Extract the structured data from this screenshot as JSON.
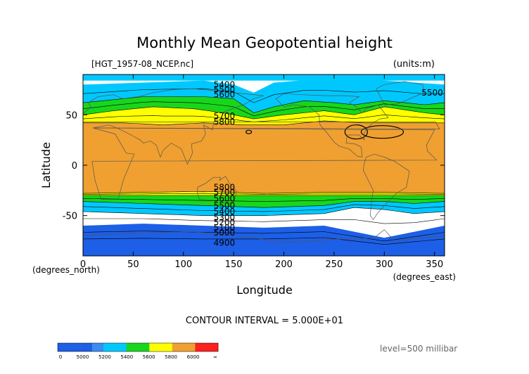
{
  "chart_data": {
    "type": "contour",
    "title": "Monthly Mean Geopotential height",
    "source_file": "[HGT_1957-08_NCEP.nc]",
    "units": "(units:m)",
    "xlabel": "Longitude",
    "ylabel": "Latitude",
    "x_unit_label": "(degrees_east)",
    "y_unit_label": "(degrees_north)",
    "xlim": [
      0,
      360
    ],
    "ylim": [
      -90,
      90
    ],
    "x_ticks": [
      0,
      50,
      100,
      150,
      200,
      250,
      300,
      350
    ],
    "y_ticks": [
      -50,
      0,
      50
    ],
    "contour_interval_text": "CONTOUR INTERVAL = 5.000E+01",
    "level_text": "level=500 millibar",
    "contour_labels": [
      {
        "text": "5400",
        "lon": 130,
        "lat": 80
      },
      {
        "text": "5500",
        "lon": 130,
        "lat": 75
      },
      {
        "text": "5600",
        "lon": 130,
        "lat": 70
      },
      {
        "text": "5500",
        "lon": 337,
        "lat": 72
      },
      {
        "text": "5700",
        "lon": 130,
        "lat": 49
      },
      {
        "text": "5800",
        "lon": 130,
        "lat": 43
      },
      {
        "text": "5800",
        "lon": 130,
        "lat": -22
      },
      {
        "text": "5700",
        "lon": 130,
        "lat": -27
      },
      {
        "text": "5600",
        "lon": 130,
        "lat": -33
      },
      {
        "text": "5500",
        "lon": 130,
        "lat": -40
      },
      {
        "text": "5400",
        "lon": 130,
        "lat": -46
      },
      {
        "text": "5300",
        "lon": 130,
        "lat": -52
      },
      {
        "text": "5200",
        "lon": 130,
        "lat": -57
      },
      {
        "text": "5100",
        "lon": 130,
        "lat": -62
      },
      {
        "text": "5000",
        "lon": 130,
        "lat": -67
      },
      {
        "text": "4900",
        "lon": 130,
        "lat": -77
      }
    ],
    "bands": [
      {
        "level": 4900,
        "color": "#1d5fe6",
        "north": null,
        "south": [
          [
            0,
            -60
          ],
          [
            60,
            -58
          ],
          [
            120,
            -60
          ],
          [
            180,
            -62
          ],
          [
            240,
            -60
          ],
          [
            270,
            -66
          ],
          [
            300,
            -72
          ],
          [
            330,
            -66
          ],
          [
            360,
            -60
          ]
        ]
      },
      {
        "level": 5200,
        "color": "#00c8ff",
        "north": [
          [
            0,
            80
          ],
          [
            60,
            82
          ],
          [
            120,
            84
          ],
          [
            150,
            80
          ],
          [
            170,
            72
          ],
          [
            190,
            82
          ],
          [
            240,
            86
          ],
          [
            300,
            84
          ],
          [
            360,
            80
          ]
        ],
        "south": [
          [
            0,
            -46
          ],
          [
            60,
            -48
          ],
          [
            120,
            -50
          ],
          [
            180,
            -50
          ],
          [
            240,
            -48
          ],
          [
            270,
            -42
          ],
          [
            300,
            -44
          ],
          [
            330,
            -48
          ],
          [
            360,
            -46
          ]
        ]
      },
      {
        "level": 5400,
        "color": "#18d61c",
        "north": [
          [
            0,
            62
          ],
          [
            60,
            68
          ],
          [
            120,
            68
          ],
          [
            150,
            66
          ],
          [
            170,
            52
          ],
          [
            190,
            58
          ],
          [
            220,
            64
          ],
          [
            250,
            62
          ],
          [
            270,
            60
          ],
          [
            300,
            64
          ],
          [
            340,
            60
          ],
          [
            360,
            62
          ]
        ],
        "south": [
          [
            0,
            -36
          ],
          [
            60,
            -38
          ],
          [
            120,
            -40
          ],
          [
            180,
            -42
          ],
          [
            240,
            -40
          ],
          [
            270,
            -36
          ],
          [
            300,
            -36
          ],
          [
            330,
            -38
          ],
          [
            360,
            -36
          ]
        ]
      },
      {
        "level": 5600,
        "color": "#ffff00",
        "north": [
          [
            0,
            50
          ],
          [
            30,
            54
          ],
          [
            70,
            58
          ],
          [
            110,
            56
          ],
          [
            140,
            52
          ],
          [
            170,
            46
          ],
          [
            200,
            50
          ],
          [
            240,
            54
          ],
          [
            270,
            50
          ],
          [
            300,
            58
          ],
          [
            340,
            52
          ],
          [
            360,
            50
          ]
        ],
        "south": [
          [
            0,
            -30
          ],
          [
            60,
            -30
          ],
          [
            120,
            -30
          ],
          [
            180,
            -30
          ],
          [
            240,
            -30
          ],
          [
            300,
            -30
          ],
          [
            360,
            -30
          ]
        ]
      },
      {
        "level": 5800,
        "color": "#f0a030",
        "north": [
          [
            0,
            42
          ],
          [
            40,
            42
          ],
          [
            80,
            40
          ],
          [
            120,
            42
          ],
          [
            160,
            40
          ],
          [
            200,
            40
          ],
          [
            240,
            44
          ],
          [
            280,
            42
          ],
          [
            320,
            42
          ],
          [
            360,
            42
          ]
        ],
        "south": [
          [
            0,
            -28
          ],
          [
            60,
            -27
          ],
          [
            120,
            -26
          ],
          [
            180,
            -28
          ],
          [
            240,
            -27
          ],
          [
            300,
            -27
          ],
          [
            360,
            -28
          ]
        ]
      }
    ],
    "colorbar": {
      "colors": [
        "#1d5fe6",
        "#1d5fe6",
        "#1d5fe6",
        "#1d5fe6",
        "#1d5fe6",
        "#1d5fe6",
        "#3b8cf0",
        "#3b8cf0",
        "#00c8ff",
        "#00c8ff",
        "#00c8ff",
        "#00c8ff",
        "#18d61c",
        "#18d61c",
        "#18d61c",
        "#18d61c",
        "#ffff00",
        "#ffff00",
        "#ffff00",
        "#ffff00",
        "#f0a030",
        "#f0a030",
        "#f0a030",
        "#f0a030",
        "#ff2020",
        "#ff2020",
        "#ff2020",
        "#ff2020"
      ],
      "tick_labels": [
        "0",
        "5000",
        "5200",
        "5400",
        "5600",
        "5800",
        "6000",
        "∞"
      ]
    }
  }
}
